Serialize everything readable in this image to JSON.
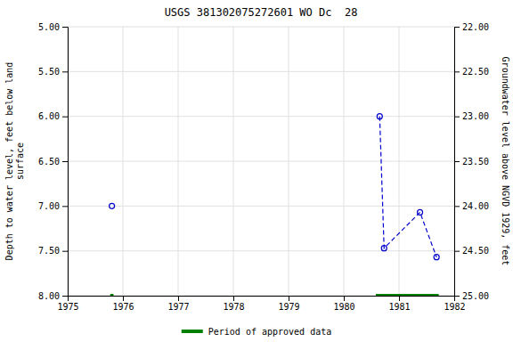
{
  "chart_data": {
    "type": "line",
    "title": "USGS 381302075272601 WO Dc  28",
    "ylabel": "Depth to water level, feet below land\nsurface",
    "y2label": "Groundwater level above NGVD 1929, feet",
    "xlim": [
      1975,
      1982
    ],
    "ylim": [
      8.0,
      5.0
    ],
    "y2lim": [
      25.0,
      22.0
    ],
    "xticks": [
      1975,
      1976,
      1977,
      1978,
      1979,
      1980,
      1981,
      1982
    ],
    "yticks": [
      {
        "value": 5.0,
        "label": "5.00"
      },
      {
        "value": 5.5,
        "label": "5.50"
      },
      {
        "value": 6.0,
        "label": "6.00"
      },
      {
        "value": 6.5,
        "label": "6.50"
      },
      {
        "value": 7.0,
        "label": "7.00"
      },
      {
        "value": 7.5,
        "label": "7.50"
      },
      {
        "value": 8.0,
        "label": "8.00"
      }
    ],
    "y2ticks": [
      {
        "value": 22.0,
        "label": "22.00"
      },
      {
        "value": 22.5,
        "label": "22.50"
      },
      {
        "value": 23.0,
        "label": "23.00"
      },
      {
        "value": 23.5,
        "label": "23.50"
      },
      {
        "value": 24.0,
        "label": "24.00"
      },
      {
        "value": 24.5,
        "label": "24.50"
      },
      {
        "value": 25.0,
        "label": "25.00"
      }
    ],
    "grid": true,
    "legend": "bottom",
    "series": [
      {
        "type": "line",
        "color": "#0000cc",
        "marker": "circle",
        "line_style": "dashed",
        "x": [
          1980.65,
          1980.73,
          1981.38,
          1981.68
        ],
        "values": [
          6.0,
          7.47,
          7.07,
          7.57
        ]
      },
      {
        "type": "scatter",
        "color": "#0000cc",
        "marker": "circle",
        "x": [
          1975.8
        ],
        "values": [
          7.0
        ]
      },
      {
        "name": "Period of approved data",
        "type": "line",
        "color": "#008000",
        "marker": "none",
        "line_style": "solid",
        "x": [
          1975.77,
          1975.83,
          null,
          1980.58,
          1981.72
        ],
        "values": [
          8.0,
          8.0,
          null,
          8.0,
          8.0
        ]
      }
    ]
  }
}
